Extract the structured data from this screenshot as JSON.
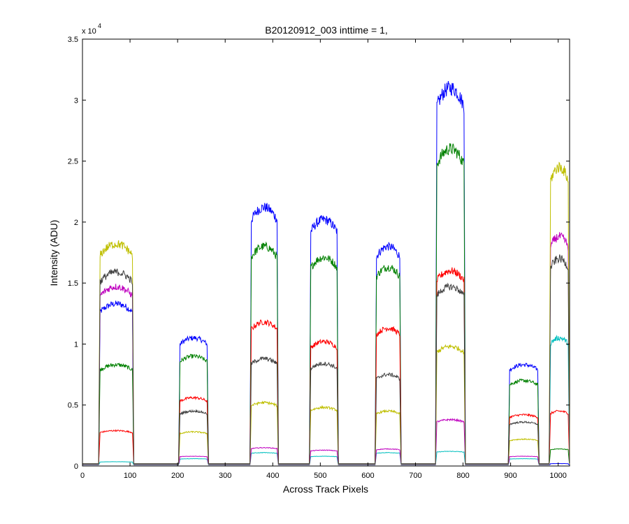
{
  "chart_data": {
    "type": "line",
    "title": "B20120912_003 inttime = 1,",
    "xlabel": "Across Track Pixels",
    "ylabel": "Intensity (ADU)",
    "y_multiplier_base": "x 10",
    "y_multiplier_exp": "4",
    "xlim": [
      0,
      1024
    ],
    "ylim": [
      0,
      35000
    ],
    "x_ticks": [
      0,
      100,
      200,
      300,
      400,
      500,
      600,
      700,
      800,
      900,
      1000
    ],
    "x_tick_labels": [
      "0",
      "100",
      "200",
      "300",
      "400",
      "500",
      "600",
      "700",
      "800",
      "900",
      "1000"
    ],
    "y_ticks": [
      0,
      5000,
      10000,
      15000,
      20000,
      25000,
      30000,
      35000
    ],
    "y_tick_labels": [
      "0",
      "0.5",
      "1",
      "1.5",
      "2",
      "2.5",
      "3",
      "3.5"
    ],
    "grid": false,
    "legend": "none",
    "background_level": 150,
    "segments": [
      {
        "start": 34,
        "end": 108
      },
      {
        "start": 202,
        "end": 265
      },
      {
        "start": 352,
        "end": 412
      },
      {
        "start": 477,
        "end": 538
      },
      {
        "start": 615,
        "end": 670
      },
      {
        "start": 742,
        "end": 805
      },
      {
        "start": 895,
        "end": 960
      },
      {
        "start": 981,
        "end": 1024
      }
    ],
    "series": [
      {
        "color": "#0000ff",
        "plateaus": [
          13300,
          10500,
          21200,
          20200,
          18000,
          31000,
          8300,
          200
        ]
      },
      {
        "color": "#008000",
        "plateaus": [
          8300,
          9000,
          18000,
          17100,
          16300,
          26000,
          7000,
          1400
        ]
      },
      {
        "color": "#ff0000",
        "plateaus": [
          2900,
          5600,
          11800,
          10200,
          11300,
          16000,
          4200,
          4500
        ]
      },
      {
        "color": "#00bfbf",
        "plateaus": [
          350,
          600,
          1100,
          800,
          1100,
          1200,
          600,
          10500
        ]
      },
      {
        "color": "#bf00bf",
        "plateaus": [
          14700,
          800,
          1500,
          1300,
          1400,
          3800,
          800,
          18800
        ]
      },
      {
        "color": "#bfbf00",
        "plateaus": [
          18200,
          2800,
          5200,
          4800,
          4500,
          9800,
          2200,
          24500
        ]
      },
      {
        "color": "#404040",
        "plateaus": [
          15900,
          4500,
          8800,
          8400,
          7500,
          14700,
          3600,
          17000
        ]
      }
    ]
  }
}
